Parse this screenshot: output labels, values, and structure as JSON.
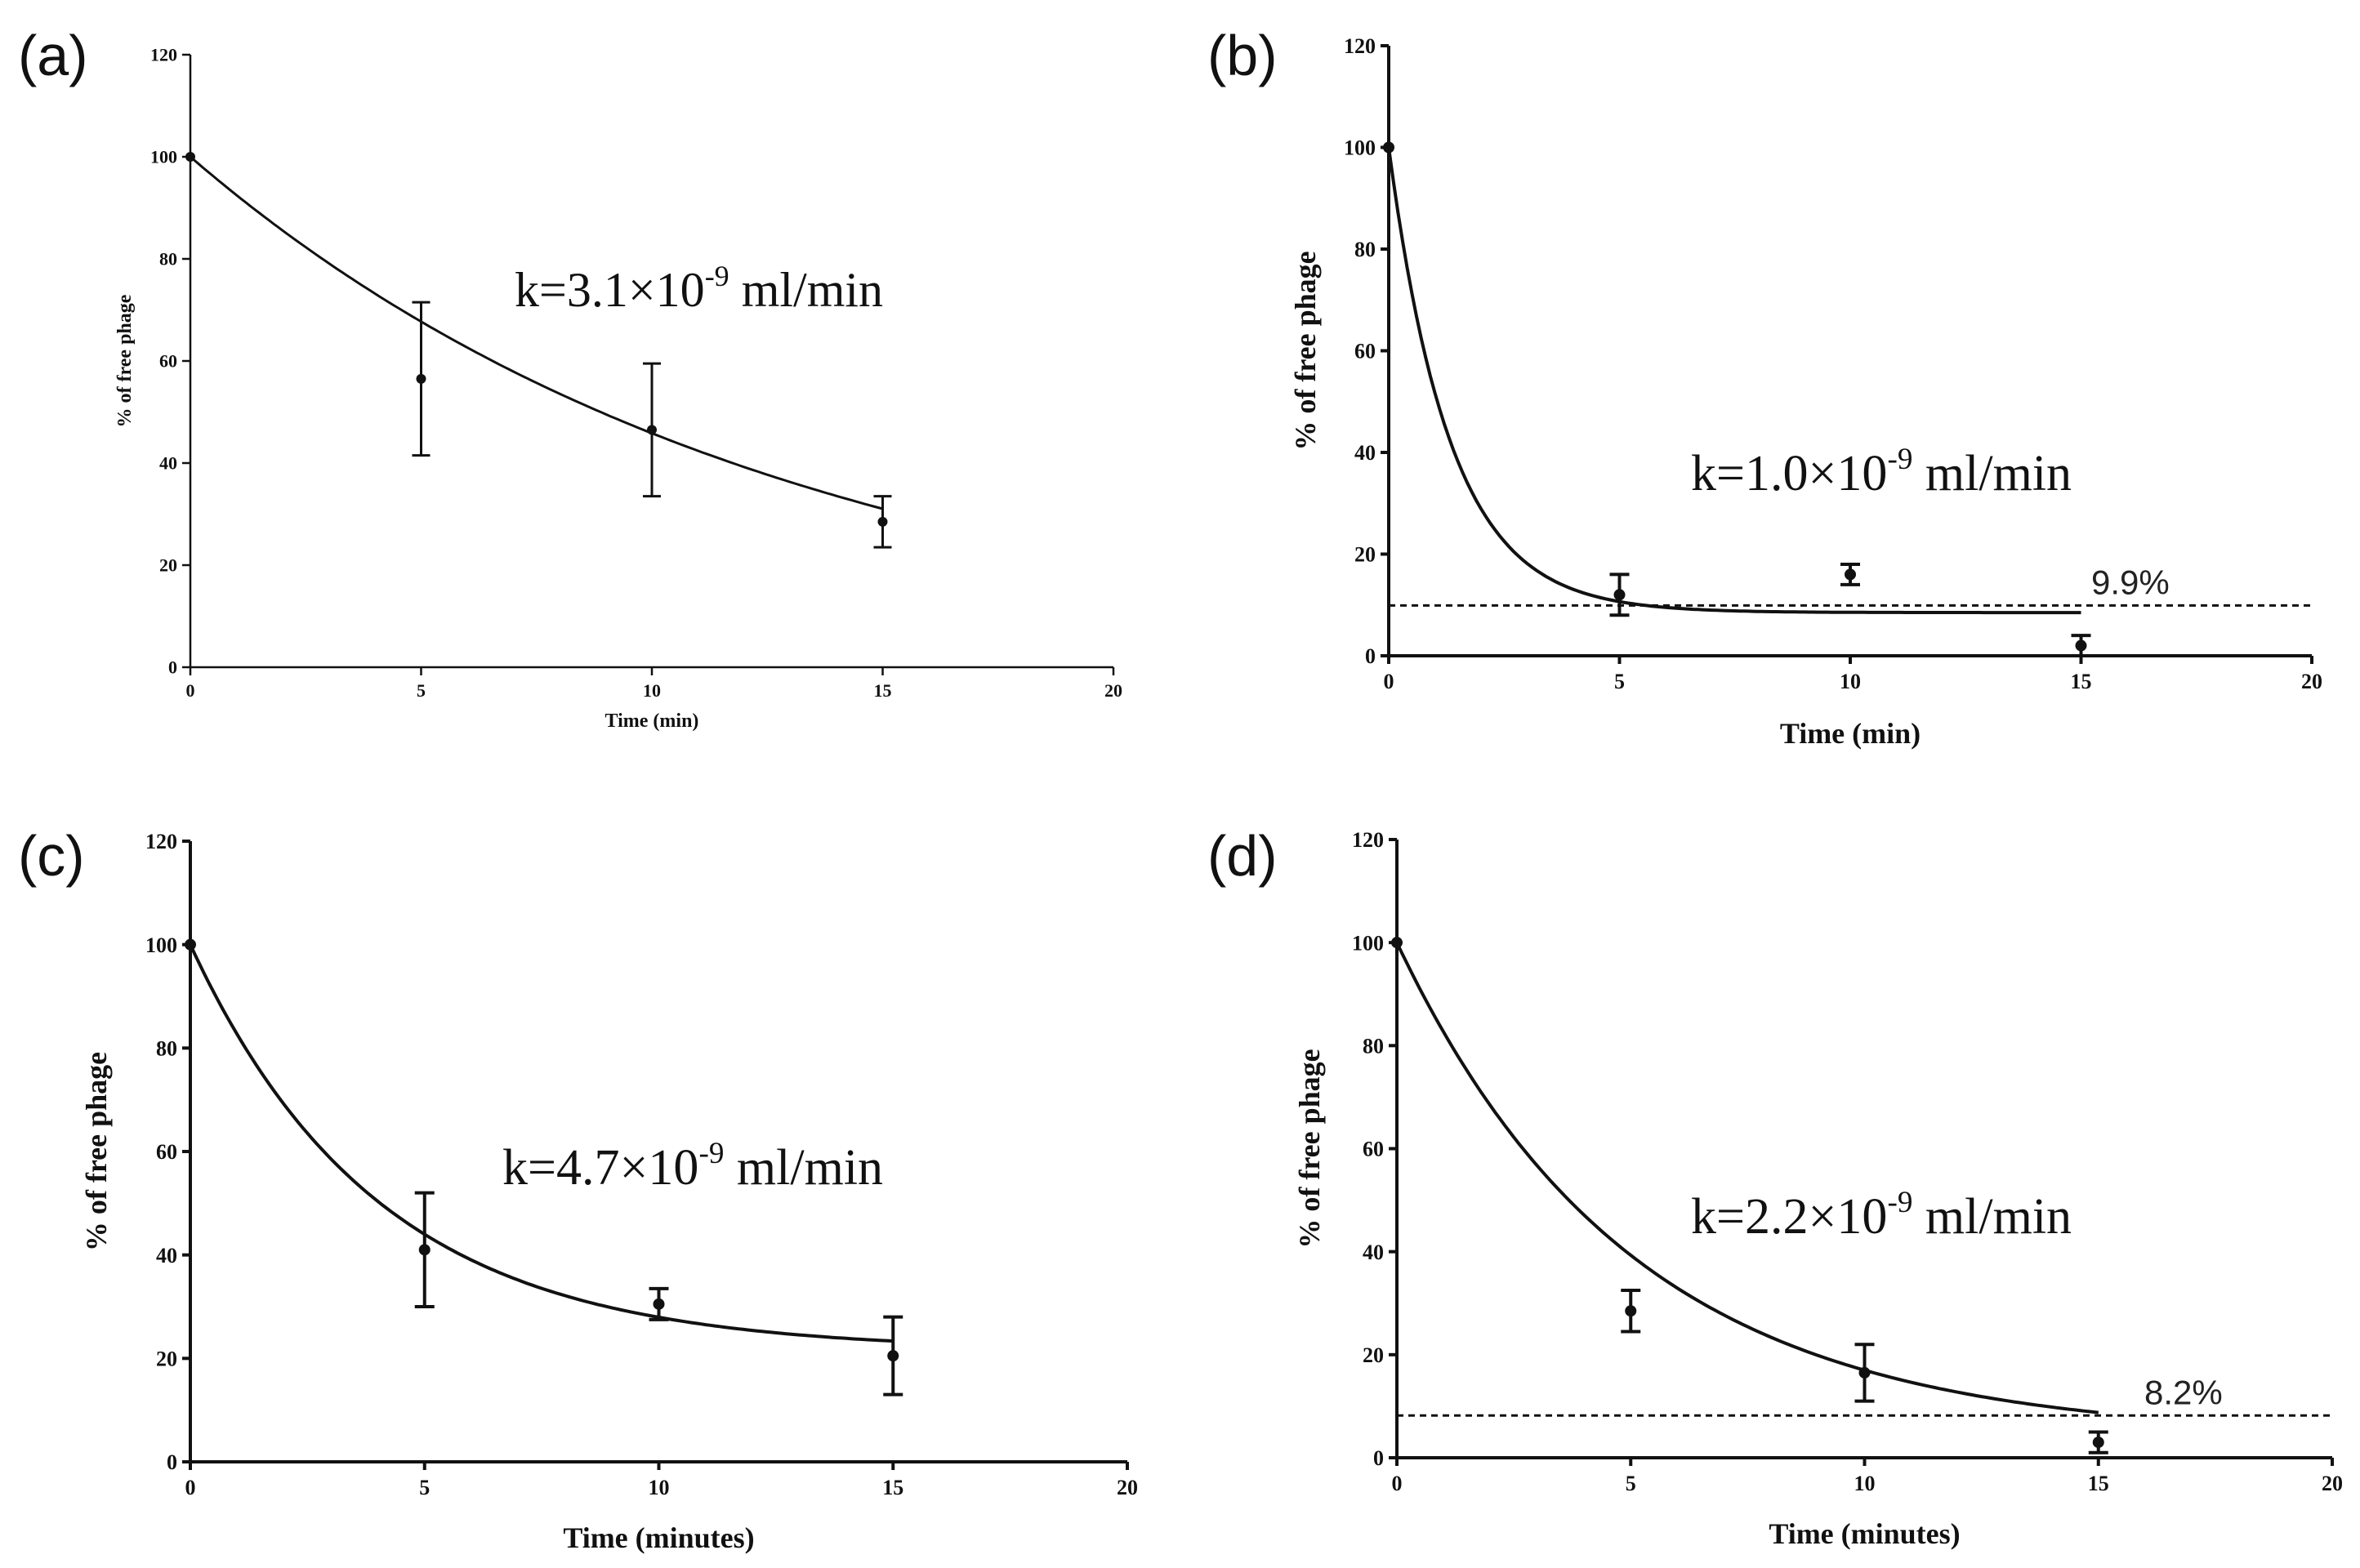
{
  "chart_data": [
    {
      "panel": "(a)",
      "type": "scatter",
      "xlabel": "Time (min)",
      "ylabel": "% of free phage",
      "xlim": [
        0,
        20
      ],
      "ylim": [
        0,
        120
      ],
      "xticks": [
        0,
        5,
        10,
        15,
        20
      ],
      "yticks": [
        0,
        20,
        40,
        60,
        80,
        100,
        120
      ],
      "points": [
        {
          "x": 0,
          "y": 100,
          "err": 0
        },
        {
          "x": 5,
          "y": 56.5,
          "err": 15
        },
        {
          "x": 10,
          "y": 46.5,
          "err": 13
        },
        {
          "x": 15,
          "y": 28.5,
          "err": 5
        }
      ],
      "fit": {
        "model": "exp_plateau",
        "y0": 100,
        "plateau": 0,
        "rate": 0.078
      },
      "annotation": {
        "prefix": "k=3.1×10",
        "exponent": "-9",
        "suffix": " ml/min"
      },
      "reference_line": null
    },
    {
      "panel": "(b)",
      "type": "scatter",
      "xlabel": "Time (min)",
      "ylabel": "% of free phage",
      "xlim": [
        0,
        20
      ],
      "ylim": [
        0,
        120
      ],
      "xticks": [
        0,
        5,
        10,
        15,
        20
      ],
      "yticks": [
        0,
        20,
        40,
        60,
        80,
        100,
        120
      ],
      "points": [
        {
          "x": 0,
          "y": 100,
          "err": 0
        },
        {
          "x": 5,
          "y": 12,
          "err": 4
        },
        {
          "x": 10,
          "y": 16,
          "err": 2
        },
        {
          "x": 15,
          "y": 2,
          "err": 2
        }
      ],
      "fit": {
        "model": "exp_plateau",
        "y0": 100,
        "plateau": 8.5,
        "rate": 0.75
      },
      "annotation": {
        "prefix": "k=1.0×10",
        "exponent": "-9",
        "suffix": " ml/min"
      },
      "reference_line": {
        "y": 9.9,
        "label": "9.9%"
      }
    },
    {
      "panel": "(c)",
      "type": "scatter",
      "xlabel": "Time (minutes)",
      "ylabel": "% of free phage",
      "xlim": [
        0,
        20
      ],
      "ylim": [
        0,
        120
      ],
      "xticks": [
        0,
        5,
        10,
        15,
        20
      ],
      "yticks": [
        0,
        20,
        40,
        60,
        80,
        100,
        120
      ],
      "points": [
        {
          "x": 0,
          "y": 100,
          "err": 0
        },
        {
          "x": 5,
          "y": 41,
          "err": 11
        },
        {
          "x": 10,
          "y": 30.5,
          "err": 3
        },
        {
          "x": 15,
          "y": 20.5,
          "err": 7.5
        }
      ],
      "fit": {
        "model": "exp_plateau",
        "y0": 100,
        "plateau": 21.5,
        "rate": 0.25
      },
      "annotation": {
        "prefix": "k=4.7×10",
        "exponent": "-9",
        "suffix": " ml/min"
      },
      "reference_line": null
    },
    {
      "panel": "(d)",
      "type": "scatter",
      "xlabel": "Time (minutes)",
      "ylabel": "% of free phage",
      "xlim": [
        0,
        20
      ],
      "ylim": [
        0,
        120
      ],
      "xticks": [
        0,
        5,
        10,
        15,
        20
      ],
      "yticks": [
        0,
        20,
        40,
        60,
        80,
        100,
        120
      ],
      "points": [
        {
          "x": 0,
          "y": 100,
          "err": 0
        },
        {
          "x": 5,
          "y": 28.5,
          "err": 4
        },
        {
          "x": 10,
          "y": 16.5,
          "err": 5.5
        },
        {
          "x": 15,
          "y": 3,
          "err": 2
        }
      ],
      "fit": {
        "model": "exp_plateau",
        "y0": 100,
        "plateau": 4,
        "rate": 0.2
      },
      "annotation": {
        "prefix": "k=2.2×10",
        "exponent": "-9",
        "suffix": " ml/min"
      },
      "reference_line": {
        "y": 8.2,
        "label": "8.2%"
      }
    }
  ]
}
